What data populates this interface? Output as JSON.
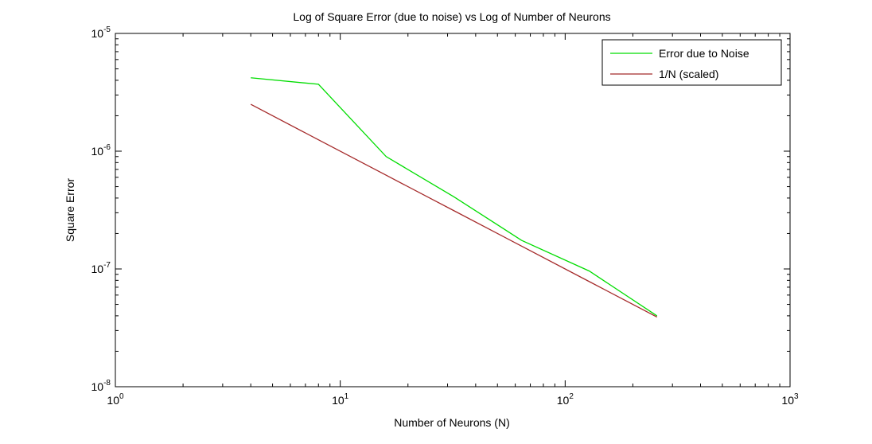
{
  "chart_data": {
    "type": "line",
    "title": "Log of Square Error (due to noise) vs Log of Number of Neurons",
    "xlabel": "Number of Neurons (N)",
    "ylabel": "Square Error",
    "x_scale": "log",
    "y_scale": "log",
    "xlim": [
      1,
      1000
    ],
    "ylim": [
      1e-08,
      1e-05
    ],
    "x_ticks": [
      {
        "value": 1,
        "base": "10",
        "exp": "0"
      },
      {
        "value": 10,
        "base": "10",
        "exp": "1"
      },
      {
        "value": 100,
        "base": "10",
        "exp": "2"
      },
      {
        "value": 1000,
        "base": "10",
        "exp": "3"
      }
    ],
    "y_ticks": [
      {
        "value": 1e-08,
        "base": "10",
        "exp": "-8"
      },
      {
        "value": 1e-07,
        "base": "10",
        "exp": "-7"
      },
      {
        "value": 1e-06,
        "base": "10",
        "exp": "-6"
      },
      {
        "value": 1e-05,
        "base": "10",
        "exp": "-5"
      }
    ],
    "grid": false,
    "legend_position": "top-right",
    "series": [
      {
        "name": "Error due to Noise",
        "color": "#00dd00",
        "x": [
          4,
          8,
          16,
          32,
          64,
          128,
          256
        ],
        "y": [
          4.2e-06,
          3.7e-06,
          9e-07,
          4.1e-07,
          1.75e-07,
          9.6e-08,
          4e-08
        ]
      },
      {
        "name": "1/N (scaled)",
        "color": "#a52a2a",
        "x": [
          4,
          8,
          16,
          32,
          64,
          128,
          256
        ],
        "y": [
          2.5e-06,
          1.25e-06,
          6.25e-07,
          3.125e-07,
          1.5625e-07,
          7.8125e-08,
          3.90625e-08
        ]
      }
    ]
  }
}
